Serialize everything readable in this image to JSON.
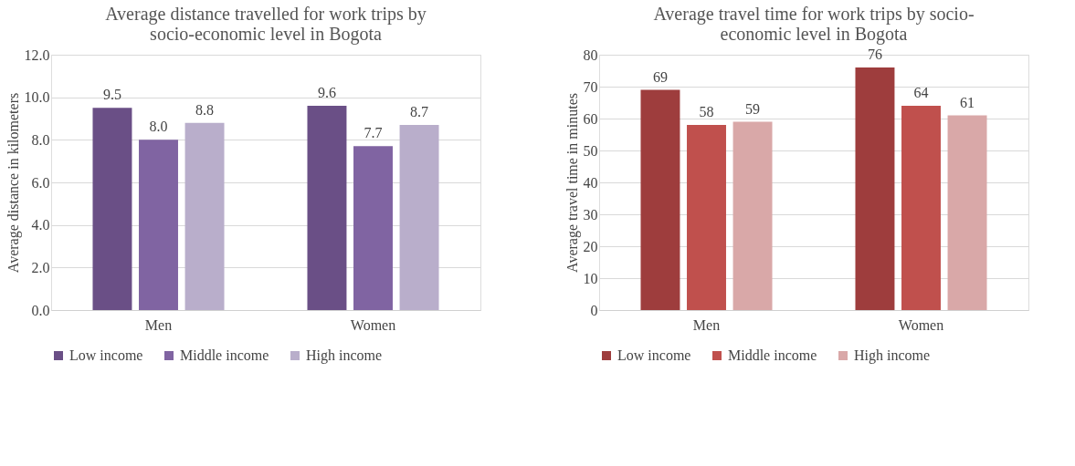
{
  "chart_data": [
    {
      "type": "bar",
      "title": "Average distance travelled for work trips by socio-economic level in Bogota",
      "ylabel": "Average distance in kilometers",
      "categories": [
        "Men",
        "Women"
      ],
      "series": [
        {
          "name": "Low income",
          "color": "#6a4f86",
          "values": [
            9.5,
            9.6
          ],
          "value_labels": [
            "9.5",
            "9.6"
          ]
        },
        {
          "name": "Middle income",
          "color": "#8064a2",
          "values": [
            8.0,
            7.7
          ],
          "value_labels": [
            "8.0",
            "7.7"
          ]
        },
        {
          "name": "High income",
          "color": "#b9aecb",
          "values": [
            8.8,
            8.7
          ],
          "value_labels": [
            "8.8",
            "8.7"
          ]
        }
      ],
      "ylim": [
        0,
        12
      ],
      "yticks": [
        {
          "value": 0,
          "label": "0.0"
        },
        {
          "value": 2,
          "label": "2.0"
        },
        {
          "value": 4,
          "label": "4.0"
        },
        {
          "value": 6,
          "label": "6.0"
        },
        {
          "value": 8,
          "label": "8.0"
        },
        {
          "value": 10,
          "label": "10.0"
        },
        {
          "value": 12,
          "label": "12.0"
        }
      ],
      "grid": "y",
      "legend": "bottom"
    },
    {
      "type": "bar",
      "title": "Average travel time for work trips by socio-economic level in Bogota",
      "ylabel": "Average travel time in minutes",
      "categories": [
        "Men",
        "Women"
      ],
      "series": [
        {
          "name": "Low income",
          "color": "#9e3d3d",
          "values": [
            69,
            76
          ]
        },
        {
          "name": "Middle income",
          "color": "#c0504d",
          "values": [
            58,
            64
          ]
        },
        {
          "name": "High income",
          "color": "#d9a8a8",
          "values": [
            59,
            61
          ]
        }
      ],
      "ylim": [
        0,
        80
      ],
      "yticks": [
        0,
        10,
        20,
        30,
        40,
        50,
        60,
        70,
        80
      ],
      "grid": "y",
      "legend": "bottom",
      "data_labels": true
    }
  ]
}
